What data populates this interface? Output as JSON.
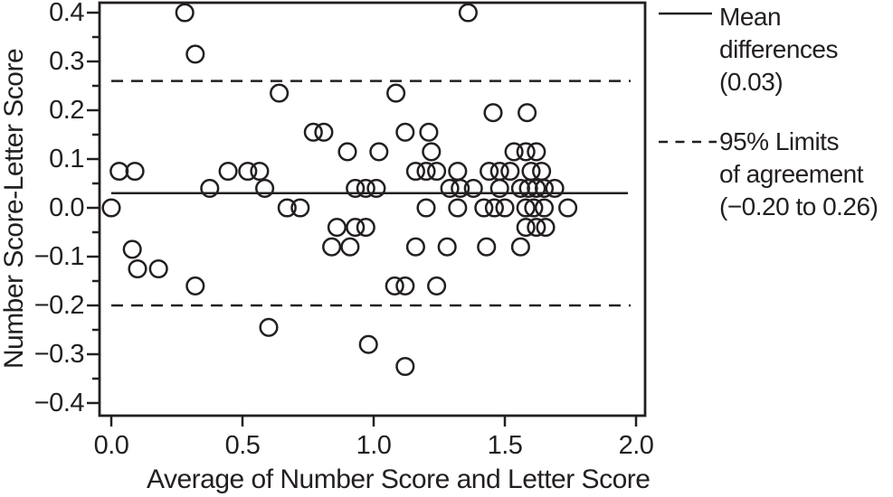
{
  "chart_data": {
    "type": "scatter",
    "title": "",
    "xlabel": "Average of Number Score and Letter Score",
    "ylabel": "Number Score-Letter Score",
    "xlim": [
      0.0,
      2.0
    ],
    "ylim": [
      -0.4,
      0.4
    ],
    "x_ticks": {
      "values": [
        0.0,
        0.5,
        1.0,
        1.5,
        2.0
      ],
      "labels": [
        "0.0",
        "0.5",
        "1.0",
        "1.5",
        "2.0"
      ]
    },
    "y_ticks": {
      "values": [
        0.4,
        0.3,
        0.2,
        0.1,
        0.0,
        -0.1,
        -0.2,
        -0.3,
        -0.4
      ],
      "labels": [
        "0.4",
        "0.3",
        "0.2",
        "0.1",
        "0.0",
        "−0.1",
        "−0.2",
        "−0.3",
        "−0.4"
      ]
    },
    "y_minor_ticks": [
      0.35,
      0.25,
      0.15,
      0.05,
      -0.05,
      -0.15,
      -0.25,
      -0.35
    ],
    "grid": false,
    "marker": "open-circle",
    "line_color": "#231f20",
    "mean_line": {
      "style": "solid",
      "value": 0.03
    },
    "limit_lines": {
      "style": "dashed",
      "lower": -0.2,
      "upper": 0.26
    },
    "legend_position": "right",
    "legend": [
      {
        "swatch": "solid-line",
        "lines": [
          "Mean",
          "differences",
          "(0.03)"
        ]
      },
      {
        "swatch": "dashed-line",
        "lines": [
          "95% Limits",
          "of agreement",
          "(−0.20 to 0.26)"
        ]
      }
    ],
    "points": [
      [
        0.28,
        0.4
      ],
      [
        1.36,
        0.4
      ],
      [
        0.32,
        0.315
      ],
      [
        0.64,
        0.235
      ],
      [
        1.085,
        0.235
      ],
      [
        1.455,
        0.195
      ],
      [
        1.585,
        0.195
      ],
      [
        0.77,
        0.155
      ],
      [
        0.81,
        0.155
      ],
      [
        1.12,
        0.155
      ],
      [
        1.21,
        0.155
      ],
      [
        0.9,
        0.115
      ],
      [
        1.02,
        0.115
      ],
      [
        1.22,
        0.115
      ],
      [
        1.535,
        0.115
      ],
      [
        1.58,
        0.115
      ],
      [
        1.62,
        0.115
      ],
      [
        0.03,
        0.075
      ],
      [
        0.09,
        0.075
      ],
      [
        0.445,
        0.075
      ],
      [
        0.52,
        0.075
      ],
      [
        0.565,
        0.075
      ],
      [
        1.16,
        0.075
      ],
      [
        1.2,
        0.075
      ],
      [
        1.24,
        0.075
      ],
      [
        1.32,
        0.075
      ],
      [
        1.44,
        0.075
      ],
      [
        1.48,
        0.075
      ],
      [
        1.52,
        0.075
      ],
      [
        1.6,
        0.075
      ],
      [
        1.64,
        0.075
      ],
      [
        0.375,
        0.04
      ],
      [
        0.585,
        0.04
      ],
      [
        0.93,
        0.04
      ],
      [
        0.97,
        0.04
      ],
      [
        1.01,
        0.04
      ],
      [
        1.29,
        0.04
      ],
      [
        1.33,
        0.04
      ],
      [
        1.38,
        0.04
      ],
      [
        1.48,
        0.04
      ],
      [
        1.56,
        0.04
      ],
      [
        1.59,
        0.04
      ],
      [
        1.62,
        0.04
      ],
      [
        1.65,
        0.04
      ],
      [
        1.69,
        0.04
      ],
      [
        0.0,
        0.0
      ],
      [
        0.67,
        0.0
      ],
      [
        0.72,
        0.0
      ],
      [
        1.2,
        0.0
      ],
      [
        1.32,
        0.0
      ],
      [
        1.42,
        0.0
      ],
      [
        1.46,
        0.0
      ],
      [
        1.5,
        0.0
      ],
      [
        1.58,
        0.0
      ],
      [
        1.61,
        0.0
      ],
      [
        1.65,
        0.0
      ],
      [
        1.74,
        0.0
      ],
      [
        0.86,
        -0.04
      ],
      [
        0.93,
        -0.04
      ],
      [
        0.97,
        -0.04
      ],
      [
        1.58,
        -0.04
      ],
      [
        1.62,
        -0.04
      ],
      [
        1.655,
        -0.04
      ],
      [
        0.84,
        -0.08
      ],
      [
        0.91,
        -0.08
      ],
      [
        1.16,
        -0.08
      ],
      [
        1.28,
        -0.08
      ],
      [
        1.43,
        -0.08
      ],
      [
        1.56,
        -0.08
      ],
      [
        0.08,
        -0.085
      ],
      [
        0.1,
        -0.125
      ],
      [
        0.18,
        -0.125
      ],
      [
        0.32,
        -0.16
      ],
      [
        1.08,
        -0.16
      ],
      [
        1.12,
        -0.16
      ],
      [
        1.24,
        -0.16
      ],
      [
        0.6,
        -0.245
      ],
      [
        0.98,
        -0.28
      ],
      [
        1.12,
        -0.325
      ]
    ]
  }
}
